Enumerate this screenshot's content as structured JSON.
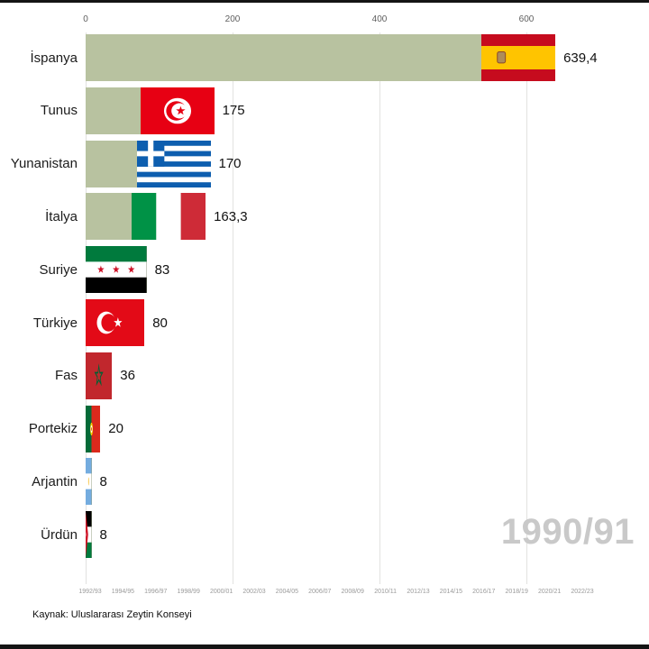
{
  "chart_data": {
    "type": "bar",
    "orientation": "horizontal",
    "title": "",
    "xlabel": "",
    "ylabel": "",
    "xlim": [
      0,
      660
    ],
    "x_ticks": [
      0,
      200,
      400,
      600
    ],
    "grid": true,
    "bar_color": "#b8c2a0",
    "categories": [
      "İspanya",
      "Tunus",
      "Yunanistan",
      "İtalya",
      "Suriye",
      "Türkiye",
      "Fas",
      "Portekiz",
      "Arjantin",
      "Ürdün"
    ],
    "values": [
      639.4,
      175,
      170,
      163.3,
      83,
      80,
      36,
      20,
      8,
      8
    ],
    "value_labels": [
      "639,4",
      "175",
      "170",
      "163,3",
      "83",
      "80",
      "36",
      "20",
      "8",
      "8"
    ],
    "flags": [
      "es",
      "tn",
      "gr",
      "it",
      "sy",
      "tr",
      "ma",
      "pt",
      "ar",
      "jo"
    ],
    "flag_names": [
      "spain-flag",
      "tunisia-flag",
      "greece-flag",
      "italy-flag",
      "syria-flag",
      "turkey-flag",
      "morocco-flag",
      "portugal-flag",
      "argentina-flag",
      "jordan-flag"
    ],
    "timeline_labels": [
      "1992/93",
      "1994/95",
      "1996/97",
      "1998/99",
      "2000/01",
      "2002/03",
      "2004/05",
      "2006/07",
      "2008/09",
      "2010/11",
      "2012/13",
      "2014/15",
      "2016/17",
      "2018/19",
      "2020/21",
      "2022/23"
    ]
  },
  "watermark": "1990/91",
  "footer": {
    "source": "Kaynak: Uluslararası Zeytin Konseyi"
  }
}
